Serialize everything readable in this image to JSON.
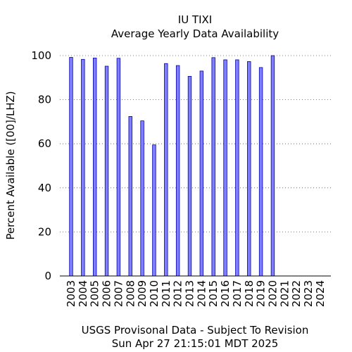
{
  "chart_data": {
    "type": "bar",
    "title": "IU TIXI",
    "subtitle": "Average Yearly Data Availability",
    "xlabel": "",
    "ylabel": "Percent Available ([00]/LHZ)",
    "ylim": [
      0,
      100
    ],
    "yticks": [
      0,
      20,
      40,
      60,
      80,
      100
    ],
    "grid": "horizontal dotted",
    "categories": [
      "2003",
      "2004",
      "2005",
      "2006",
      "2007",
      "2008",
      "2009",
      "2010",
      "2011",
      "2012",
      "2013",
      "2014",
      "2015",
      "2016",
      "2017",
      "2018",
      "2019",
      "2020",
      "2021",
      "2022",
      "2023",
      "2024"
    ],
    "values": [
      99.2,
      98.3,
      98.9,
      95.2,
      98.8,
      72.4,
      70.4,
      59.5,
      96.4,
      95.5,
      90.6,
      93.0,
      99.1,
      98.1,
      98.1,
      97.3,
      94.6,
      100.0,
      null,
      null,
      null,
      null
    ],
    "bar_color": "#8080ff",
    "bar_edge_color": "#0000aa",
    "footer": [
      "USGS Provisonal Data - Subject To Revision",
      "Sun Apr 27 21:15:01 MDT 2025"
    ]
  }
}
